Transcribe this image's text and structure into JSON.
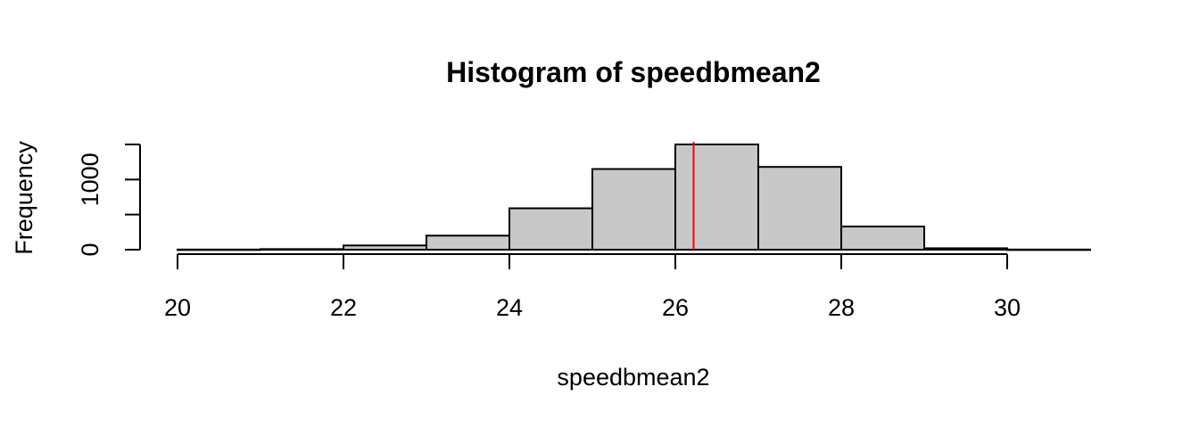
{
  "chart_data": {
    "type": "bar",
    "title": "Histogram of speedbmean2",
    "xlabel": "speedbmean2",
    "ylabel": "Frequency",
    "bins": [
      {
        "x0": 20,
        "x1": 21,
        "count": 2
      },
      {
        "x0": 21,
        "x1": 22,
        "count": 8
      },
      {
        "x0": 22,
        "x1": 23,
        "count": 60
      },
      {
        "x0": 23,
        "x1": 24,
        "count": 200
      },
      {
        "x0": 24,
        "x1": 25,
        "count": 590
      },
      {
        "x0": 25,
        "x1": 26,
        "count": 1150
      },
      {
        "x0": 26,
        "x1": 27,
        "count": 1500
      },
      {
        "x0": 27,
        "x1": 28,
        "count": 1180
      },
      {
        "x0": 28,
        "x1": 29,
        "count": 330
      },
      {
        "x0": 29,
        "x1": 30,
        "count": 20
      },
      {
        "x0": 30,
        "x1": 31,
        "count": 2
      }
    ],
    "xlim": [
      20,
      31
    ],
    "ylim": [
      0,
      1500
    ],
    "x_ticks": [
      20,
      22,
      24,
      26,
      28,
      30
    ],
    "x_tick_labels": [
      "20",
      "22",
      "24",
      "26",
      "28",
      "30"
    ],
    "y_ticks": [
      0,
      500,
      1000,
      1500
    ],
    "y_tick_labels": [
      "0",
      "",
      "1000",
      ""
    ],
    "reference_line": {
      "x": 26.22,
      "color": "#ff0000"
    },
    "bar_fill": "#c8c8c8",
    "bar_stroke": "#000000",
    "grid": false
  }
}
